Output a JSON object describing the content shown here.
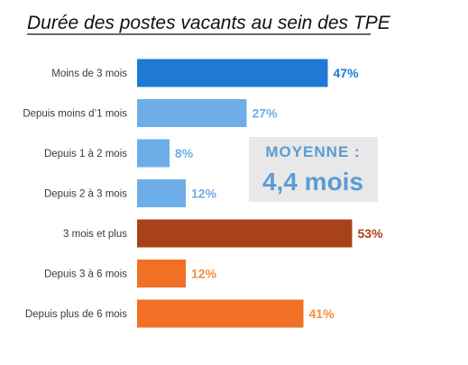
{
  "chart_data": {
    "type": "bar",
    "orientation": "horizontal",
    "title": "Durée des postes vacants au sein des TPE",
    "xlim": [
      0,
      100
    ],
    "grid": false,
    "categories": [
      "Moins de 3 mois",
      "Depuis moins d’1 mois",
      "Depuis 1 à 2 mois",
      "Depuis 2 à 3 mois",
      "3 mois et plus",
      "Depuis 3 à 6 mois",
      "Depuis plus de 6 mois"
    ],
    "values": [
      47,
      27,
      8,
      12,
      53,
      12,
      41
    ],
    "value_labels": [
      "47%",
      "27%",
      "8%",
      "12%",
      "53%",
      "12%",
      "41%"
    ],
    "bar_colors": [
      "#1f7ad6",
      "#6eaee8",
      "#6eaee8",
      "#6eaee8",
      "#a8421a",
      "#f07025",
      "#f07025"
    ],
    "label_colors": [
      "#1f7ad6",
      "#6eaee8",
      "#6eaee8",
      "#6eaee8",
      "#a8421a",
      "#f0913e",
      "#f0913e"
    ]
  },
  "average_box": {
    "label": "MOYENNE :",
    "value": "4,4 mois",
    "background": "#e8e8e8",
    "text_color": "#5b9bd5"
  }
}
